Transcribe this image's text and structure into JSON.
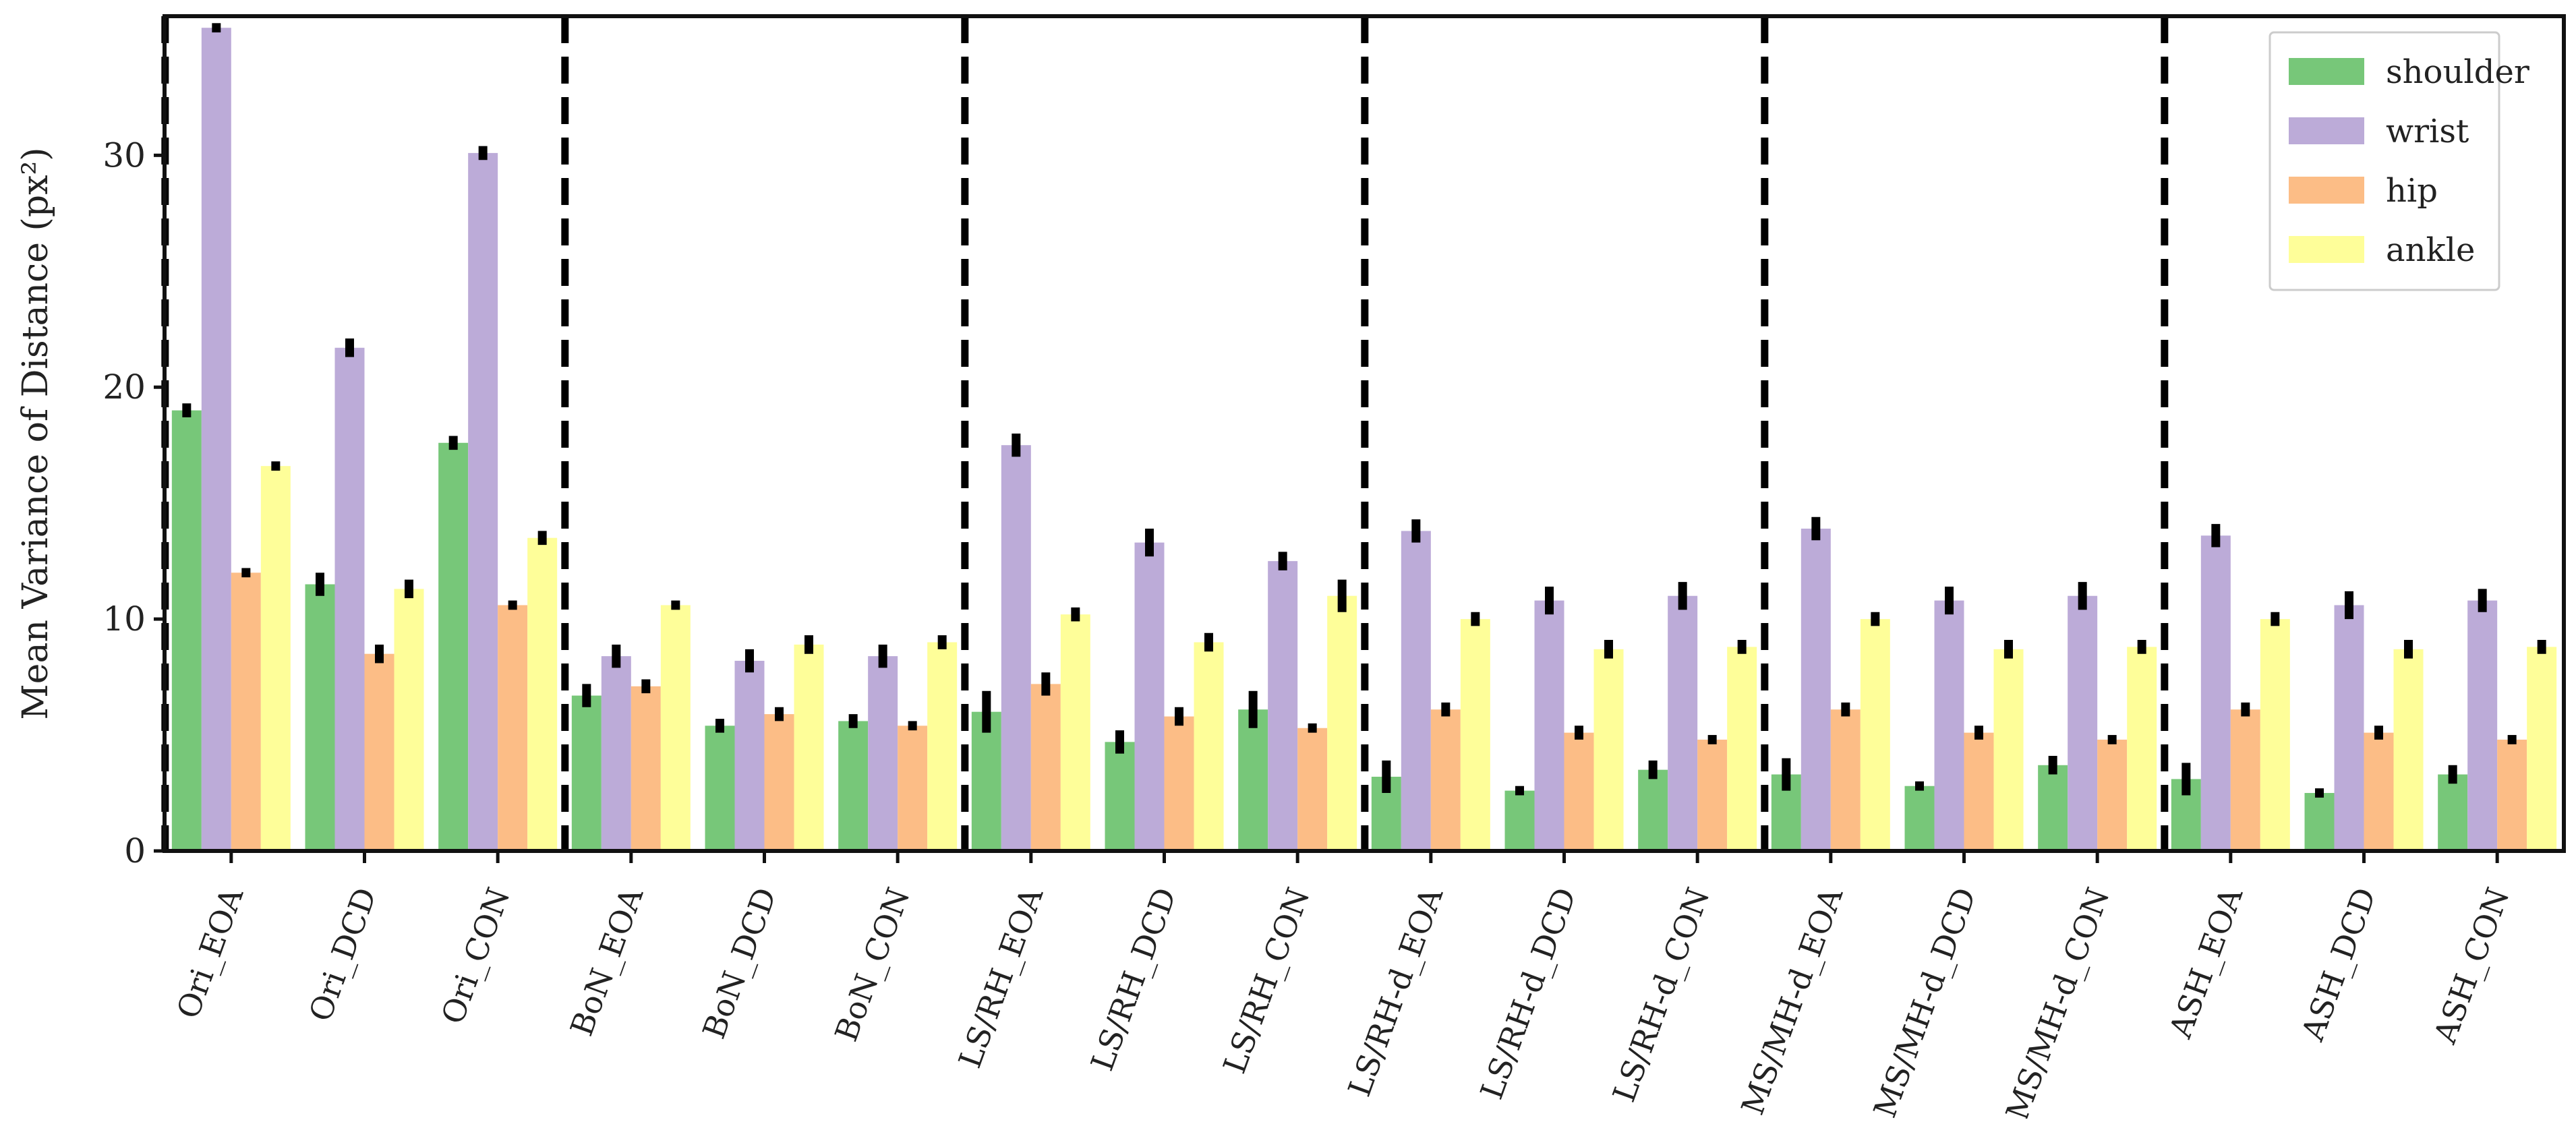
{
  "chart_data": {
    "type": "bar",
    "title": "",
    "xlabel": "",
    "ylabel": "Mean Variance of Distance (px²)",
    "ylim": [
      0,
      36
    ],
    "yticks": [
      0,
      10,
      20,
      30
    ],
    "grid": false,
    "legend_position": "top-right",
    "categories": [
      "Ori_EOA",
      "Ori_DCD",
      "Ori_CON",
      "BoN_EOA",
      "BoN_DCD",
      "BoN_CON",
      "LS/RH_EOA",
      "LS/RH_DCD",
      "LS/RH_CON",
      "LS/RH-d_EOA",
      "LS/RH-d_DCD",
      "LS/RH-d_CON",
      "MS/MH-d_EOA",
      "MS/MH-d_DCD",
      "MS/MH-d_CON",
      "ASH_EOA",
      "ASH_DCD",
      "ASH_CON"
    ],
    "group_separators_after": [
      0,
      3,
      6,
      9,
      12,
      15
    ],
    "series": [
      {
        "name": "shoulder",
        "color": "#77c779",
        "values": [
          19.0,
          11.5,
          17.6,
          6.7,
          5.4,
          5.6,
          6.0,
          4.7,
          6.1,
          3.2,
          2.6,
          3.5,
          3.3,
          2.8,
          3.7,
          3.1,
          2.5,
          3.3
        ],
        "errors": [
          0.3,
          0.5,
          0.3,
          0.5,
          0.3,
          0.3,
          0.9,
          0.5,
          0.8,
          0.7,
          0.2,
          0.4,
          0.7,
          0.2,
          0.4,
          0.7,
          0.2,
          0.4
        ]
      },
      {
        "name": "wrist",
        "color": "#bcabd8",
        "values": [
          35.5,
          21.7,
          30.1,
          8.4,
          8.2,
          8.4,
          17.5,
          13.3,
          12.5,
          13.8,
          10.8,
          11.0,
          13.9,
          10.8,
          11.0,
          13.6,
          10.6,
          10.8
        ],
        "errors": [
          0.2,
          0.4,
          0.3,
          0.5,
          0.5,
          0.5,
          0.5,
          0.6,
          0.4,
          0.5,
          0.6,
          0.6,
          0.5,
          0.6,
          0.6,
          0.5,
          0.6,
          0.5
        ]
      },
      {
        "name": "hip",
        "color": "#fcbd86",
        "values": [
          12.0,
          8.5,
          10.6,
          7.1,
          5.9,
          5.4,
          7.2,
          5.8,
          5.3,
          6.1,
          5.1,
          4.8,
          6.1,
          5.1,
          4.8,
          6.1,
          5.1,
          4.8
        ],
        "errors": [
          0.2,
          0.4,
          0.2,
          0.3,
          0.3,
          0.2,
          0.5,
          0.4,
          0.2,
          0.3,
          0.3,
          0.2,
          0.3,
          0.3,
          0.2,
          0.3,
          0.3,
          0.2
        ]
      },
      {
        "name": "ankle",
        "color": "#fefe99",
        "values": [
          16.6,
          11.3,
          13.5,
          10.6,
          8.9,
          9.0,
          10.2,
          9.0,
          11.0,
          10.0,
          8.7,
          8.8,
          10.0,
          8.7,
          8.8,
          10.0,
          8.7,
          8.8
        ],
        "errors": [
          0.2,
          0.4,
          0.3,
          0.2,
          0.4,
          0.3,
          0.3,
          0.4,
          0.7,
          0.3,
          0.4,
          0.3,
          0.3,
          0.4,
          0.3,
          0.3,
          0.4,
          0.3
        ]
      }
    ]
  }
}
